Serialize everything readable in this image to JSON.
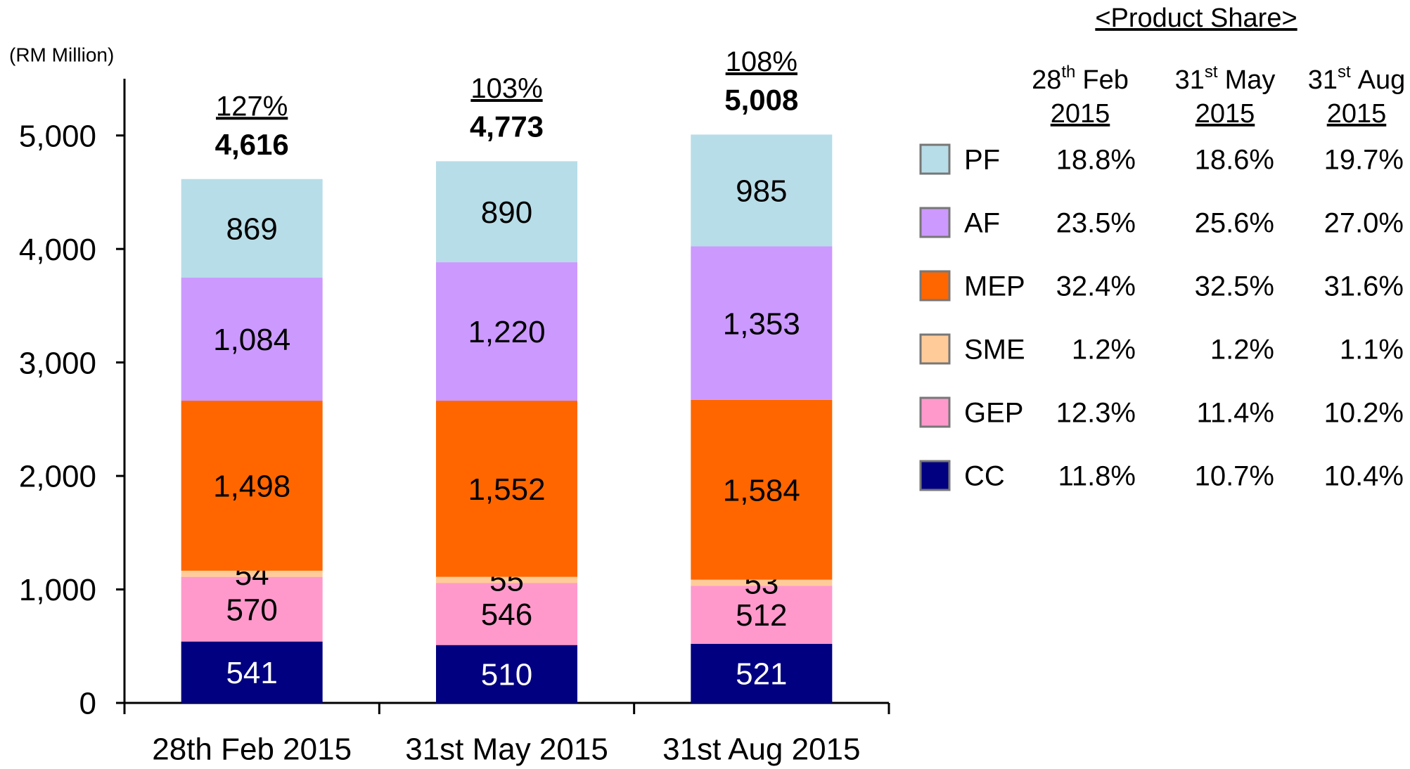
{
  "chart_data": {
    "type": "stacked_bar",
    "unit_label": "(RM Million)",
    "categories": [
      "28th Feb 2015",
      "31st May 2015",
      "31st Aug 2015"
    ],
    "series": [
      {
        "name": "CC",
        "color": "#000080",
        "values": [
          541,
          510,
          521
        ]
      },
      {
        "name": "GEP",
        "color": "#ff99cc",
        "values": [
          570,
          546,
          512
        ]
      },
      {
        "name": "SME",
        "color": "#ffcc99",
        "values": [
          54,
          55,
          53
        ]
      },
      {
        "name": "MEP",
        "color": "#ff6600",
        "values": [
          1498,
          1552,
          1584
        ],
        "value_labels": [
          "1,498",
          "1,552",
          "1,584"
        ]
      },
      {
        "name": "AF",
        "color": "#cc99ff",
        "values": [
          1084,
          1220,
          1353
        ],
        "value_labels": [
          "1,084",
          "1,220",
          "1,353"
        ]
      },
      {
        "name": "PF",
        "color": "#b7dde8",
        "values": [
          869,
          890,
          985
        ]
      }
    ],
    "totals": [
      4616,
      4773,
      5008
    ],
    "total_labels": [
      "4,616",
      "4,773",
      "5,008"
    ],
    "annotations": [
      "127%",
      "103%",
      "108%"
    ],
    "ylim": [
      0,
      5500
    ],
    "yticks": [
      0,
      {
        "value": 1000,
        "label": "1,000"
      },
      {
        "value": 2000,
        "label": "2,000"
      },
      {
        "value": 3000,
        "label": "3,000"
      },
      {
        "value": 4000,
        "label": "4,000"
      },
      {
        "value": 5000,
        "label": "5,000"
      }
    ]
  },
  "product_share": {
    "title": "<Product Share>",
    "columns": [
      {
        "day": "28",
        "suffix": "th",
        "month": "Feb",
        "year": "2015"
      },
      {
        "day": "31",
        "suffix": "st",
        "month": "May",
        "year": "2015"
      },
      {
        "day": "31",
        "suffix": "st",
        "month": "Aug",
        "year": "2015"
      }
    ],
    "rows": [
      [
        "18.8%",
        "18.6%",
        "19.7%"
      ],
      [
        "23.5%",
        "25.6%",
        "27.0%"
      ],
      [
        "32.4%",
        "32.5%",
        "31.6%"
      ],
      [
        "1.2%",
        "1.2%",
        "1.1%"
      ],
      [
        "12.3%",
        "11.4%",
        "10.2%"
      ],
      [
        "11.8%",
        "10.7%",
        "10.4%"
      ]
    ]
  }
}
